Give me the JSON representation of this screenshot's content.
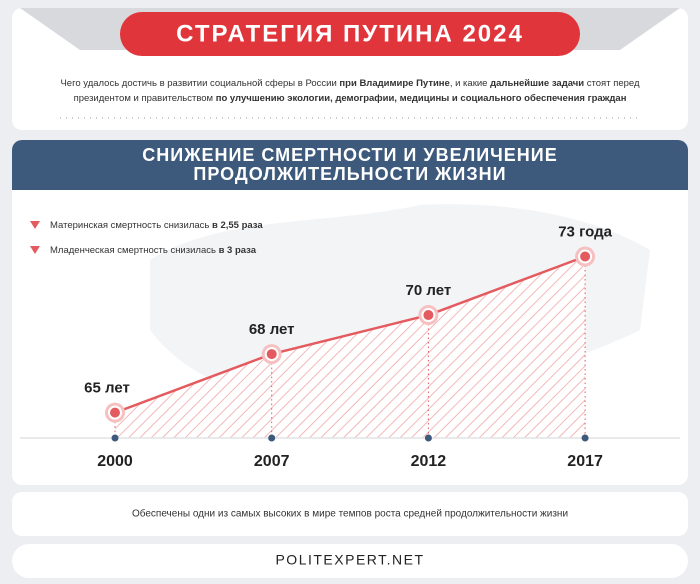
{
  "header": "СТРАТЕГИЯ ПУТИНА 2024",
  "intro": [
    [
      {
        "text": "Чего удалось достичь в развитии социальной сферы в России ",
        "bold": false
      },
      {
        "text": "при Владимире Путине",
        "bold": true
      },
      {
        "text": ", и какие ",
        "bold": false
      },
      {
        "text": "дальнейшие задачи",
        "bold": true
      },
      {
        "text": " стоят перед",
        "bold": false
      }
    ],
    [
      {
        "text": "президентом и правительством ",
        "bold": false
      },
      {
        "text": "по улучшению экологии, демографии, медицины и социального обеспечения граждан",
        "bold": true
      }
    ]
  ],
  "chart_data": {
    "type": "line",
    "title": [
      "СНИЖЕНИЕ СМЕРТНОСТИ И УВЕЛИЧЕНИЕ",
      "ПРОДОЛЖИТЕЛЬНОСТИ ЖИЗНИ"
    ],
    "annotations": [
      {
        "text": "Материнская смертность снизилась ",
        "bold": "в 2,55 раза"
      },
      {
        "text": "Младенческая смертность снизилась ",
        "bold": "в 3 раза"
      }
    ],
    "categories": [
      "2000",
      "2007",
      "2012",
      "2017"
    ],
    "values": [
      65,
      68,
      70,
      73
    ],
    "value_labels": [
      "65 лет",
      "68 лет",
      "70 лет",
      "73 года"
    ],
    "color": "#e35b5f",
    "ylim": [
      63.7,
      74
    ],
    "note": "Обеспечены одни из самых высоких в мире темпов роста средней продолжительности жизни"
  },
  "footer": "POLITEXPERT.NET"
}
